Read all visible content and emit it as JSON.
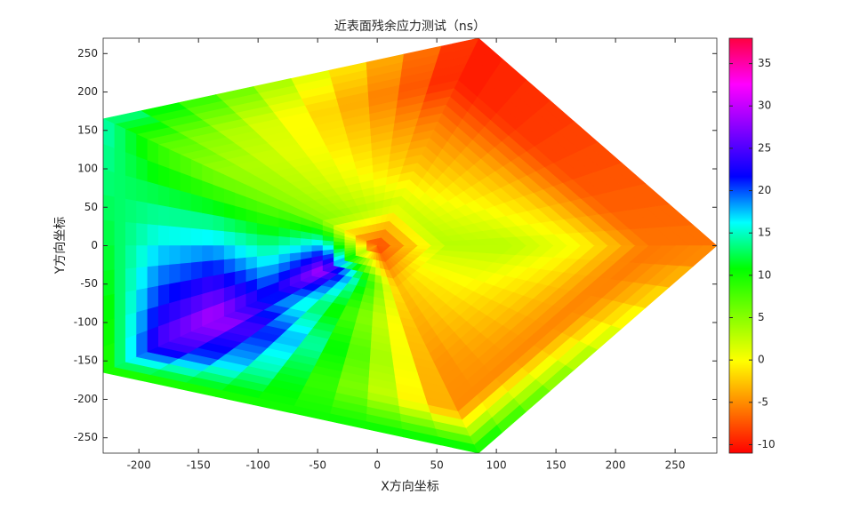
{
  "chart_data": {
    "type": "contourf",
    "title": "近表面残余应力测试（ns）",
    "x_label": "X方向坐标",
    "y_label": "Y方向坐标",
    "xlim": [
      -230,
      285
    ],
    "ylim": [
      -270,
      270
    ],
    "xticks": [
      -200,
      -150,
      -100,
      -50,
      0,
      50,
      100,
      150,
      200,
      250
    ],
    "yticks": [
      -250,
      -200,
      -150,
      -100,
      -50,
      0,
      50,
      100,
      150,
      200,
      250
    ],
    "vertices": [
      [
        285,
        0
      ],
      [
        85,
        270
      ],
      [
        -230,
        165
      ],
      [
        -230,
        -165
      ],
      [
        85,
        -270
      ]
    ],
    "center_value": -8,
    "rings": [
      {
        "r": 0.2,
        "values": [
          3,
          2,
          5,
          30,
          -3
        ]
      },
      {
        "r": 0.4,
        "values": [
          3,
          -3,
          5,
          22,
          -4
        ]
      },
      {
        "r": 0.6,
        "values": [
          0,
          -6,
          5,
          30,
          -5
        ]
      },
      {
        "r": 0.8,
        "values": [
          -6,
          -10,
          8,
          25,
          -5
        ]
      },
      {
        "r": 1.0,
        "values": [
          -6,
          -10,
          15,
          8,
          12
        ]
      }
    ],
    "colormap": [
      "#ff0000",
      "#ff8000",
      "#ffff00",
      "#80ff00",
      "#00ff00",
      "#00ffff",
      "#0000ff",
      "#8000ff",
      "#ff00ff",
      "#ff0040"
    ],
    "clim": [
      -11,
      38
    ],
    "cticks": [
      -10,
      -5,
      0,
      5,
      10,
      15,
      20,
      25,
      30,
      35
    ]
  }
}
